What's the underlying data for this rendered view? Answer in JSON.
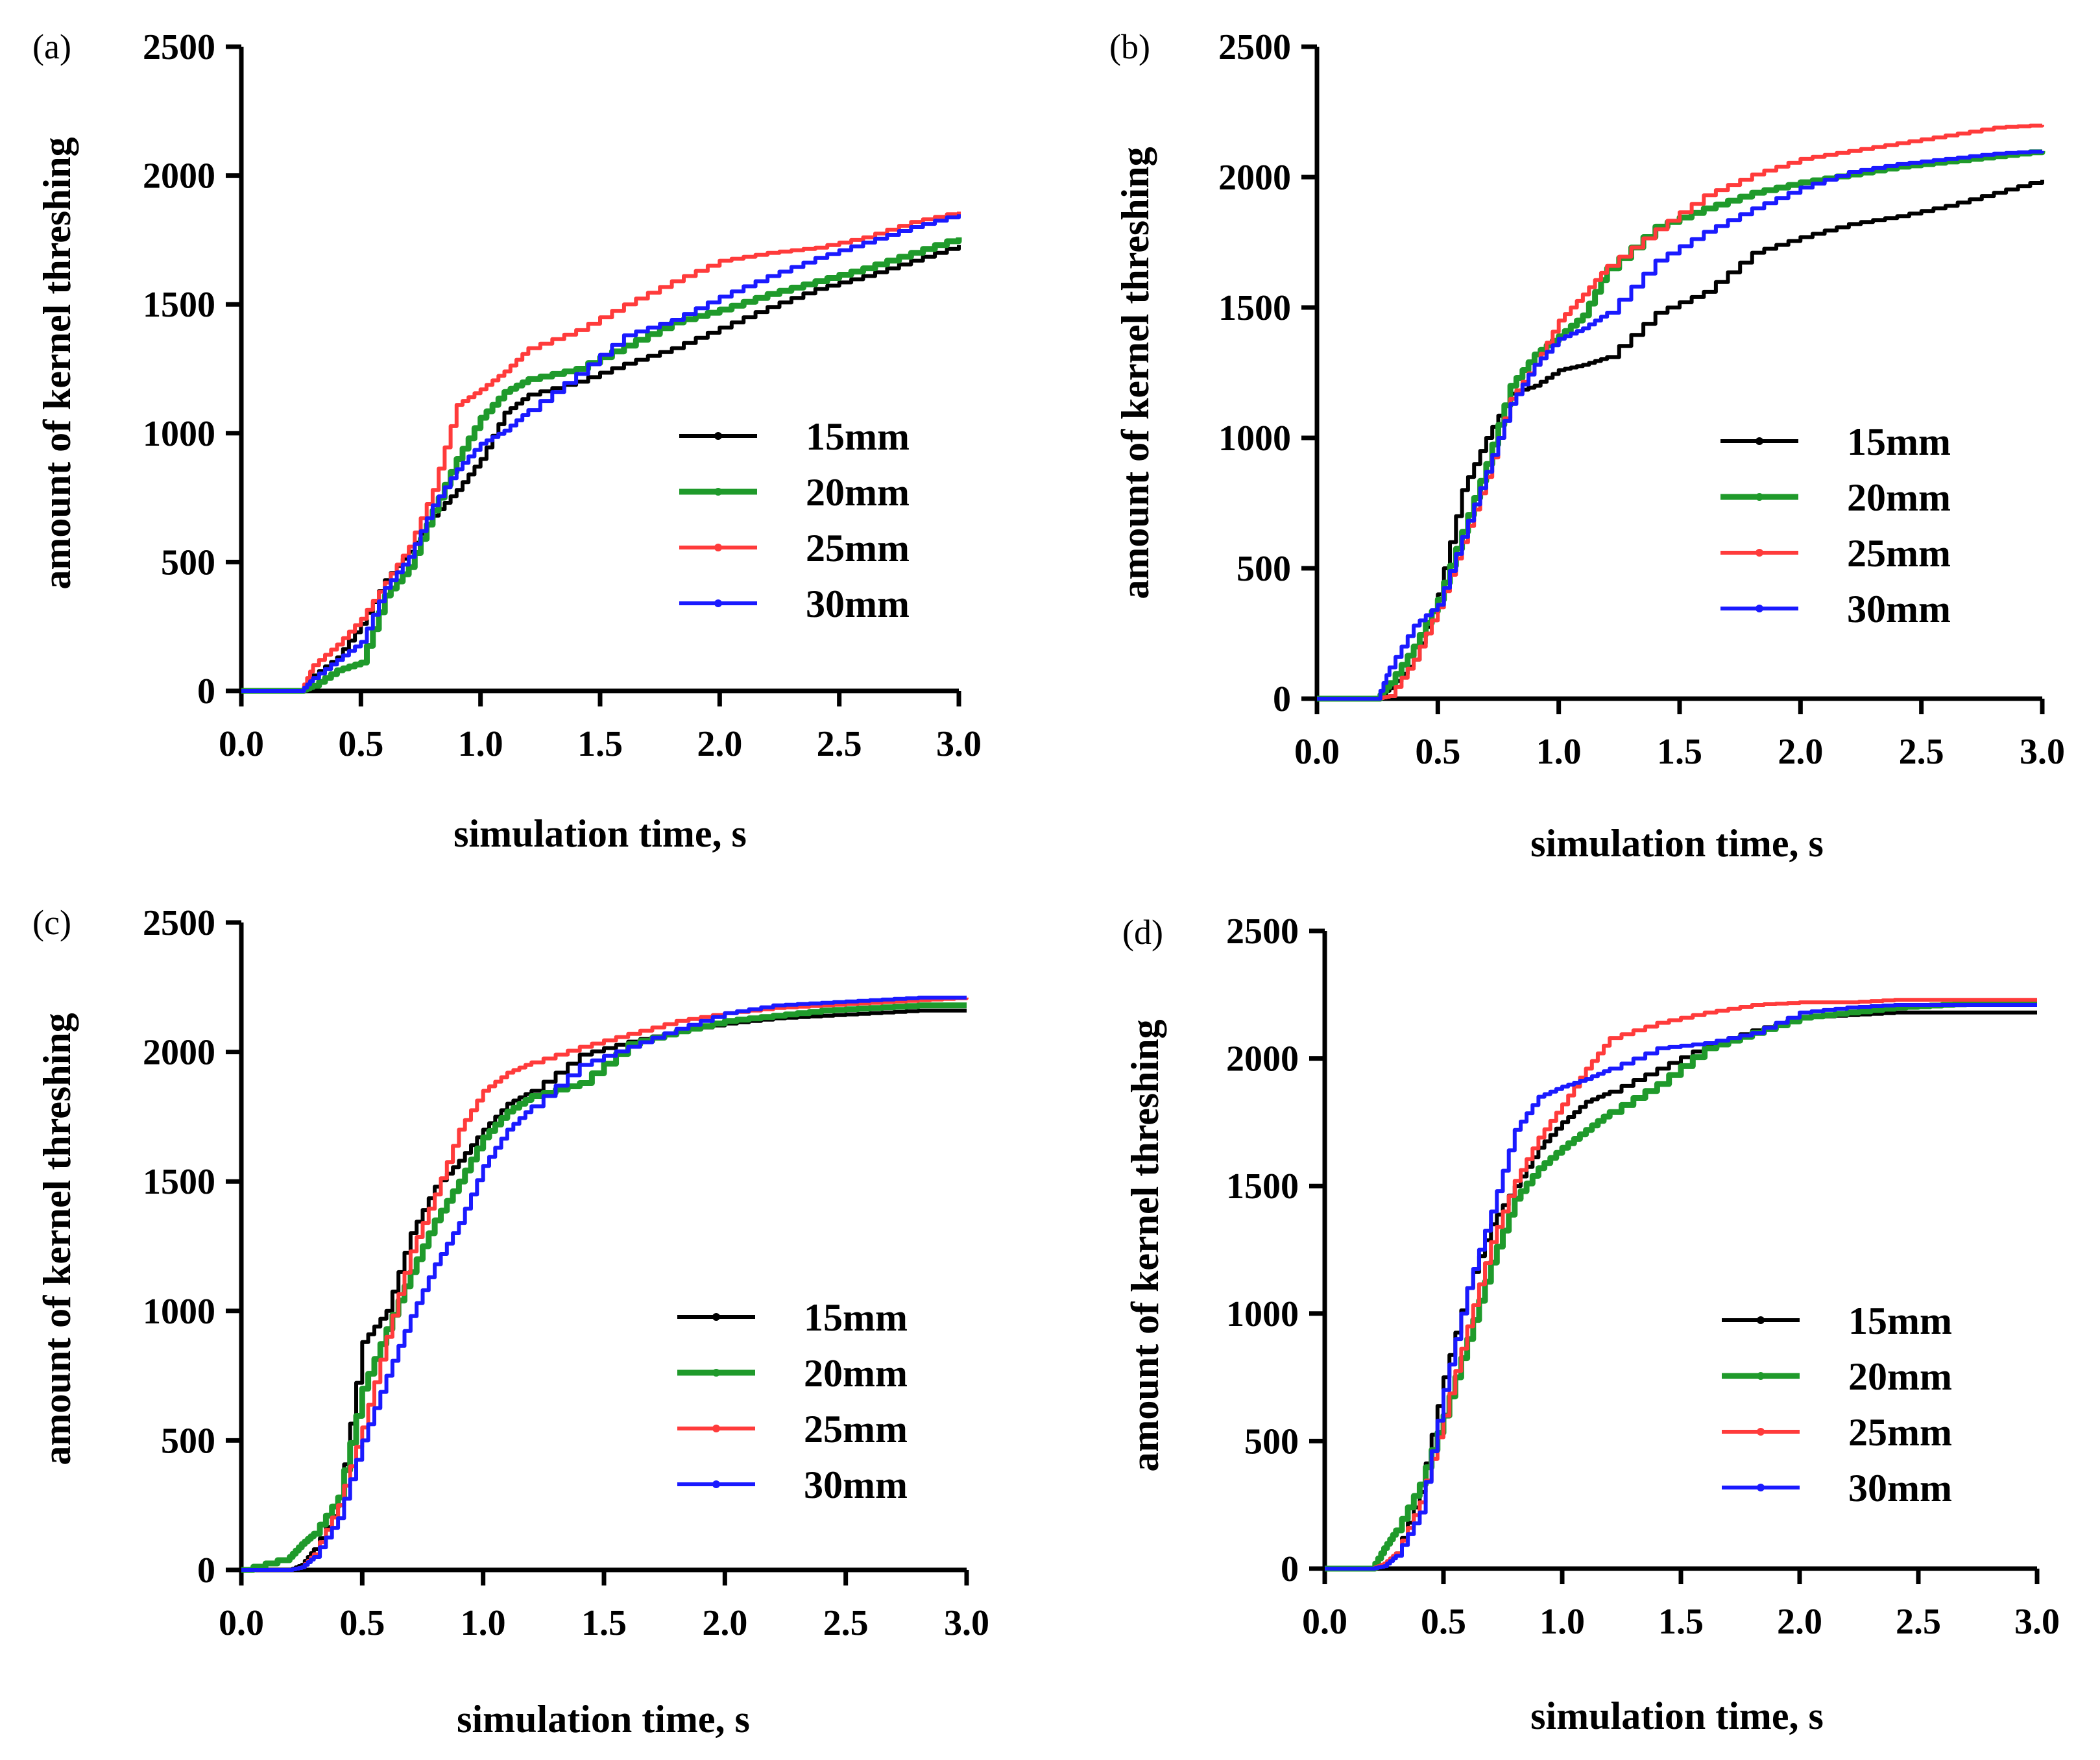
{
  "figure": {
    "panels": [
      {
        "label": "(a)"
      },
      {
        "label": "(b)"
      },
      {
        "label": "(c)"
      },
      {
        "label": "(d)"
      }
    ]
  },
  "colors": {
    "15mm": "#000000",
    "20mm": "#1f9a2b",
    "25mm": "#ff3b3b",
    "30mm": "#1a1aff"
  },
  "chart_data": [
    {
      "type": "line",
      "panel": "(a)",
      "xlabel": "simulation time, s",
      "ylabel": "amount of kernel threshing",
      "xlim": [
        0,
        3
      ],
      "ylim": [
        0,
        2500
      ],
      "xticks": [
        "0.0",
        "0.5",
        "1.0",
        "1.5",
        "2.0",
        "2.5",
        "3.0"
      ],
      "yticks": [
        "0",
        "500",
        "1000",
        "1500",
        "2000",
        "2500"
      ],
      "grid": false,
      "legend_position": "lower-right",
      "x": [
        0,
        0.25,
        0.3,
        0.4,
        0.5,
        0.6,
        0.7,
        0.8,
        0.9,
        1.0,
        1.1,
        1.2,
        1.4,
        1.6,
        1.8,
        2.0,
        2.2,
        2.4,
        2.6,
        2.8,
        3.0
      ],
      "series": [
        {
          "name": "15mm",
          "values": [
            0,
            0,
            60,
            130,
            260,
            430,
            540,
            680,
            780,
            900,
            1080,
            1150,
            1200,
            1270,
            1330,
            1410,
            1490,
            1560,
            1610,
            1670,
            1730
          ]
        },
        {
          "name": "20mm",
          "values": [
            0,
            0,
            20,
            80,
            110,
            370,
            480,
            700,
            900,
            1060,
            1160,
            1210,
            1250,
            1340,
            1430,
            1480,
            1540,
            1590,
            1640,
            1700,
            1760
          ]
        },
        {
          "name": "25mm",
          "values": [
            0,
            0,
            100,
            180,
            280,
            420,
            560,
            780,
            1110,
            1170,
            1240,
            1330,
            1400,
            1500,
            1590,
            1670,
            1700,
            1720,
            1760,
            1820,
            1860
          ]
        },
        {
          "name": "30mm",
          "values": [
            0,
            0,
            50,
            120,
            190,
            400,
            520,
            720,
            860,
            960,
            1010,
            1090,
            1230,
            1380,
            1440,
            1530,
            1610,
            1680,
            1740,
            1800,
            1850
          ]
        }
      ]
    },
    {
      "type": "line",
      "panel": "(b)",
      "xlabel": "simulation time, s",
      "ylabel": "amount of kernel threshing",
      "xlim": [
        0,
        3
      ],
      "ylim": [
        0,
        2500
      ],
      "xticks": [
        "0.0",
        "0.5",
        "1.0",
        "1.5",
        "2.0",
        "2.5",
        "3.0"
      ],
      "yticks": [
        "0",
        "500",
        "1000",
        "1500",
        "2000",
        "2500"
      ],
      "grid": false,
      "legend_position": "lower-right",
      "x": [
        0,
        0.25,
        0.3,
        0.4,
        0.5,
        0.6,
        0.7,
        0.8,
        0.9,
        1.0,
        1.1,
        1.2,
        1.4,
        1.6,
        1.8,
        2.0,
        2.2,
        2.4,
        2.6,
        2.8,
        3.0
      ],
      "series": [
        {
          "name": "15mm",
          "values": [
            0,
            0,
            40,
            150,
            400,
            800,
            1000,
            1170,
            1200,
            1260,
            1280,
            1310,
            1480,
            1560,
            1710,
            1770,
            1820,
            1850,
            1890,
            1940,
            1990
          ]
        },
        {
          "name": "20mm",
          "values": [
            0,
            0,
            60,
            200,
            380,
            640,
            900,
            1200,
            1320,
            1390,
            1470,
            1650,
            1810,
            1880,
            1940,
            1980,
            2010,
            2040,
            2060,
            2080,
            2100
          ]
        },
        {
          "name": "25mm",
          "values": [
            0,
            0,
            10,
            150,
            350,
            600,
            850,
            1150,
            1280,
            1450,
            1550,
            1660,
            1800,
            1930,
            2010,
            2070,
            2100,
            2130,
            2160,
            2190,
            2200
          ]
        },
        {
          "name": "30mm",
          "values": [
            0,
            0,
            120,
            280,
            360,
            620,
            870,
            1130,
            1280,
            1380,
            1420,
            1480,
            1680,
            1790,
            1880,
            1960,
            2020,
            2050,
            2070,
            2090,
            2100
          ]
        }
      ]
    },
    {
      "type": "line",
      "panel": "(c)",
      "xlabel": "simulation time, s",
      "ylabel": "amount of kernel threshing",
      "xlim": [
        0,
        3
      ],
      "ylim": [
        0,
        2500
      ],
      "xticks": [
        "0.0",
        "0.5",
        "1.0",
        "1.5",
        "2.0",
        "2.5",
        "3.0"
      ],
      "yticks": [
        "0",
        "500",
        "1000",
        "1500",
        "2000",
        "2500"
      ],
      "grid": false,
      "legend_position": "lower-right",
      "x": [
        0,
        0.2,
        0.25,
        0.3,
        0.4,
        0.5,
        0.6,
        0.7,
        0.8,
        0.9,
        1.0,
        1.1,
        1.2,
        1.4,
        1.6,
        1.8,
        2.0,
        2.2,
        2.4,
        2.6,
        2.8,
        3.0
      ],
      "series": [
        {
          "name": "15mm",
          "values": [
            0,
            0,
            20,
            80,
            250,
            880,
            1000,
            1300,
            1480,
            1580,
            1700,
            1800,
            1850,
            1990,
            2040,
            2080,
            2110,
            2130,
            2140,
            2150,
            2160,
            2160
          ]
        },
        {
          "name": "20mm",
          "values": [
            0,
            50,
            100,
            140,
            280,
            700,
            930,
            1150,
            1350,
            1500,
            1670,
            1770,
            1830,
            1880,
            2030,
            2080,
            2120,
            2140,
            2160,
            2170,
            2180,
            2180
          ]
        },
        {
          "name": "25mm",
          "values": [
            0,
            0,
            10,
            60,
            250,
            550,
            900,
            1230,
            1450,
            1700,
            1850,
            1920,
            1960,
            2020,
            2070,
            2120,
            2150,
            2170,
            2180,
            2190,
            2200,
            2210
          ]
        },
        {
          "name": "30mm",
          "values": [
            0,
            0,
            10,
            50,
            200,
            500,
            750,
            980,
            1180,
            1340,
            1560,
            1700,
            1790,
            1950,
            2020,
            2090,
            2150,
            2180,
            2190,
            2200,
            2210,
            2210
          ]
        }
      ]
    },
    {
      "type": "line",
      "panel": "(d)",
      "xlabel": "simulation time, s",
      "ylabel": "amount of kernel threshing",
      "xlim": [
        0,
        3
      ],
      "ylim": [
        0,
        2500
      ],
      "xticks": [
        "0.0",
        "0.5",
        "1.0",
        "1.5",
        "2.0",
        "2.5",
        "3.0"
      ],
      "yticks": [
        "0",
        "500",
        "1000",
        "1500",
        "2000",
        "2500"
      ],
      "grid": false,
      "legend_position": "lower-right",
      "x": [
        0,
        0.2,
        0.25,
        0.3,
        0.4,
        0.5,
        0.6,
        0.7,
        0.8,
        0.9,
        1.0,
        1.1,
        1.2,
        1.4,
        1.6,
        1.8,
        2.0,
        2.2,
        2.4,
        2.6,
        2.8,
        3.0
      ],
      "series": [
        {
          "name": "15mm",
          "values": [
            0,
            0,
            10,
            60,
            300,
            750,
            1100,
            1350,
            1500,
            1650,
            1750,
            1830,
            1870,
            1960,
            2050,
            2110,
            2160,
            2170,
            2180,
            2180,
            2180,
            2180
          ]
        },
        {
          "name": "20mm",
          "values": [
            0,
            0,
            80,
            150,
            330,
            600,
            900,
            1200,
            1450,
            1570,
            1650,
            1720,
            1790,
            1900,
            2040,
            2100,
            2160,
            2180,
            2200,
            2210,
            2220,
            2220
          ]
        },
        {
          "name": "25mm",
          "values": [
            0,
            0,
            20,
            60,
            260,
            600,
            950,
            1280,
            1520,
            1690,
            1820,
            1960,
            2080,
            2140,
            2180,
            2210,
            2220,
            2220,
            2230,
            2230,
            2230,
            2230
          ]
        },
        {
          "name": "30mm",
          "values": [
            0,
            0,
            10,
            50,
            220,
            700,
            1100,
            1400,
            1720,
            1850,
            1890,
            1920,
            1960,
            2040,
            2060,
            2100,
            2180,
            2200,
            2210,
            2210,
            2210,
            2210
          ]
        }
      ]
    }
  ]
}
